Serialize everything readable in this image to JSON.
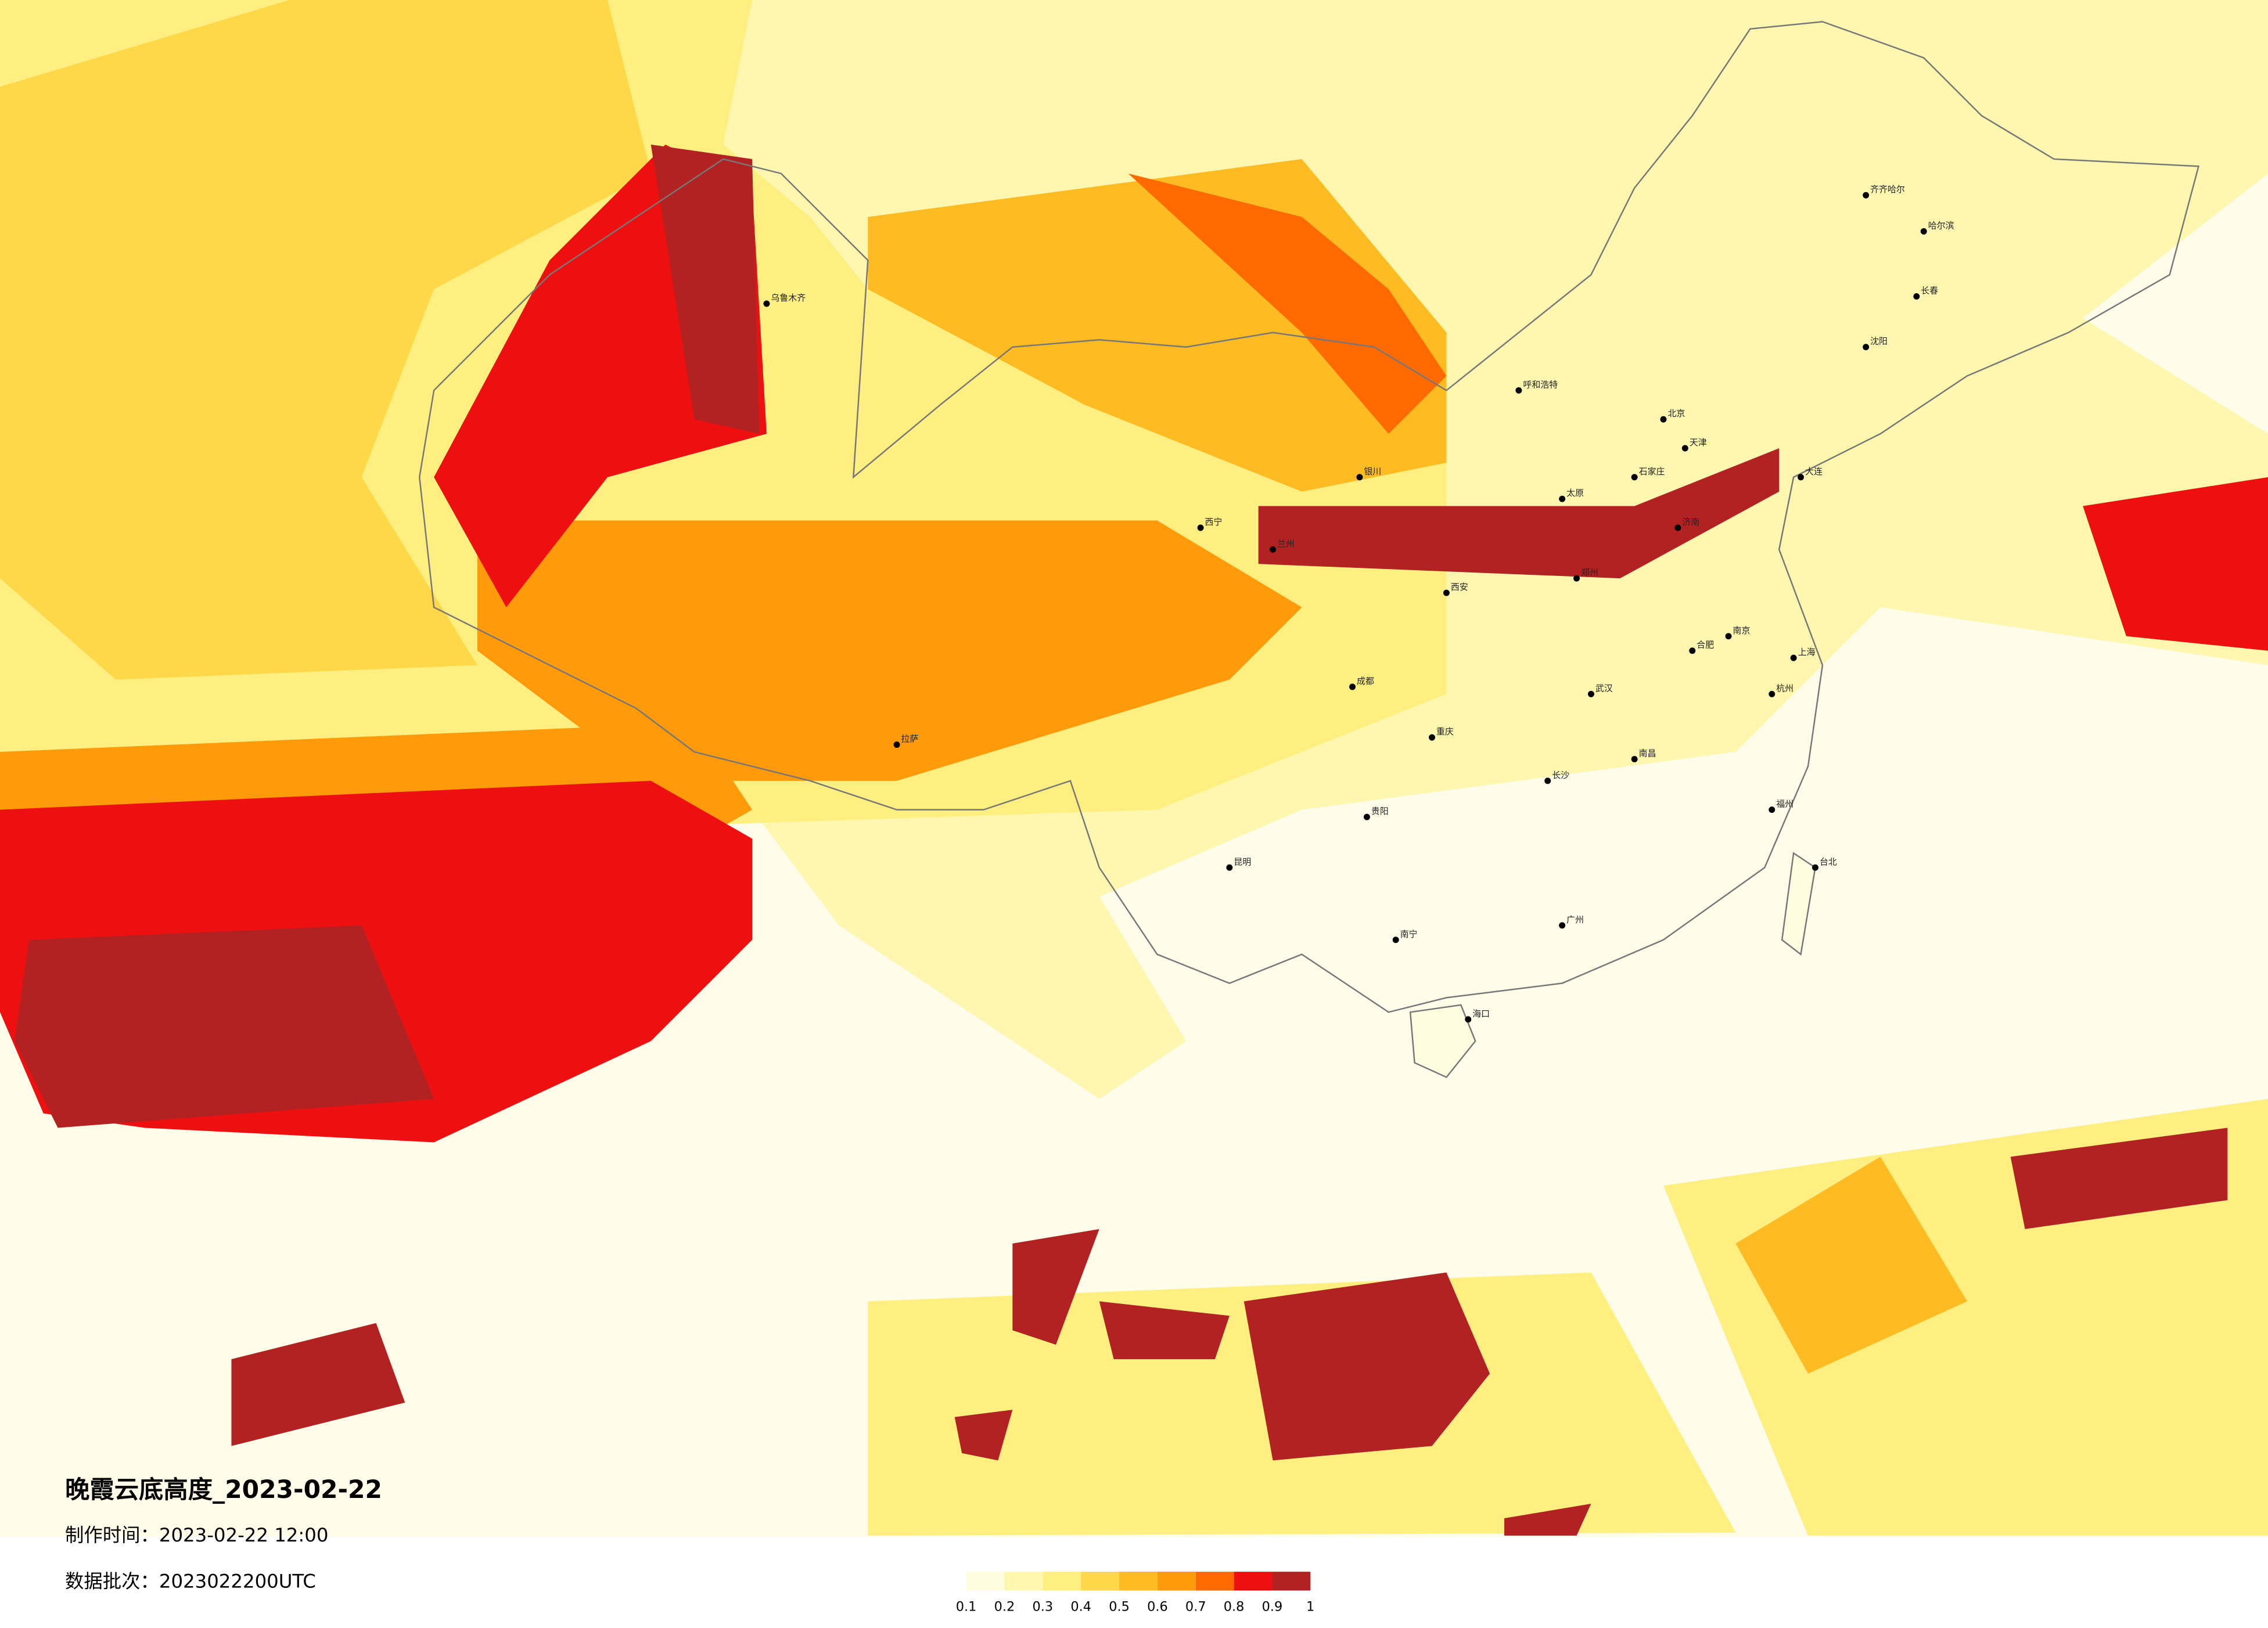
{
  "map": {
    "title": "晚霞云底高度_2023-02-22",
    "made_time": "制作时间：2023-02-22 12:00",
    "batch": "数据批次：2023022200UTC",
    "legend": {
      "ticks": [
        0.1,
        0.2,
        0.3,
        0.4,
        0.5,
        0.6,
        0.7,
        0.8,
        0.9,
        1
      ],
      "colors": [
        "#fffde0",
        "#fff7b0",
        "#ffef80",
        "#ffd84a",
        "#ffbb22",
        "#ff9a0a",
        "#ff6a00",
        "#ee1010",
        "#b22222"
      ]
    },
    "cities": [
      "北京",
      "天津",
      "石家庄",
      "太原",
      "呼和浩特",
      "哈尔滨",
      "长春",
      "沈阳",
      "西安",
      "兰州",
      "银川",
      "西宁",
      "成都",
      "重庆",
      "贵阳",
      "昆明",
      "南宁",
      "广州",
      "长沙",
      "武汉",
      "郑州",
      "济南",
      "南京",
      "上海",
      "杭州",
      "福州",
      "台北",
      "海口",
      "南昌",
      "合肥",
      "拉萨",
      "乌鲁木齐",
      "齐齐哈尔",
      "大连"
    ]
  }
}
